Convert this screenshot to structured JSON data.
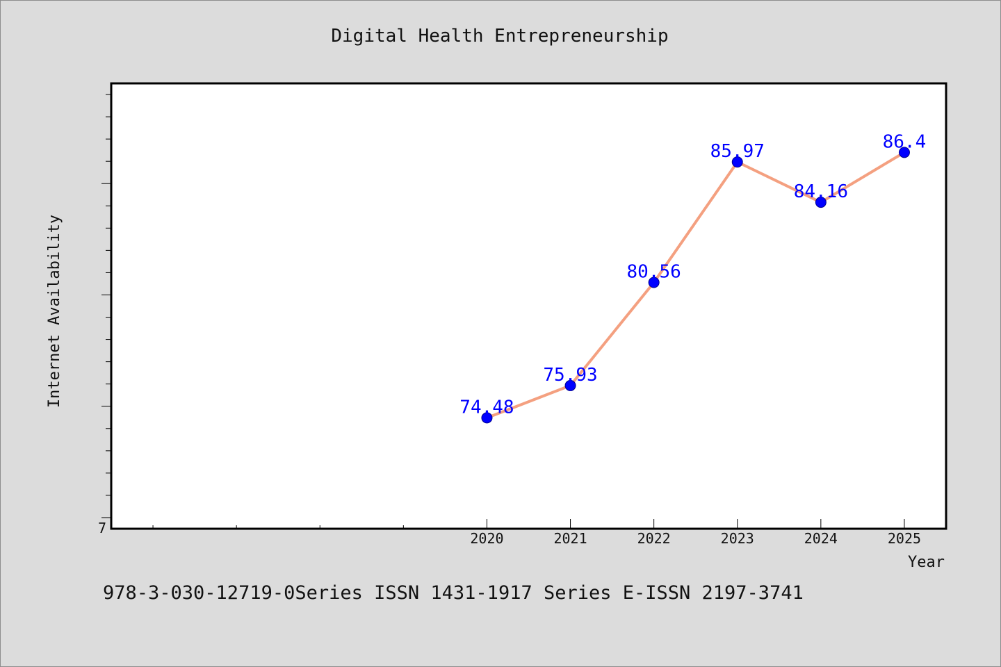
{
  "chart_data": {
    "type": "line",
    "title": "Digital Health Entrepreneurship",
    "xlabel": "Year",
    "ylabel": "Internet Availability",
    "x": [
      2020,
      2021,
      2022,
      2023,
      2024,
      2025
    ],
    "series": [
      {
        "values": [
          74.48,
          75.93,
          80.56,
          85.97,
          84.16,
          86.4
        ]
      }
    ],
    "y_tick_label": "7",
    "x_tick_labels": [
      "2020",
      "2021",
      "2022",
      "2023",
      "2024",
      "2025"
    ],
    "ylim": [
      69.5,
      89.5
    ],
    "xlim": [
      2015.5,
      2025.5
    ],
    "grid": false,
    "line_color": "#f4a080",
    "marker_color": "#0000ff",
    "label_color": "#0000ff"
  },
  "footer_text": "978-3-030-12719-0Series ISSN 1431-1917 Series E-ISSN 2197-3741"
}
